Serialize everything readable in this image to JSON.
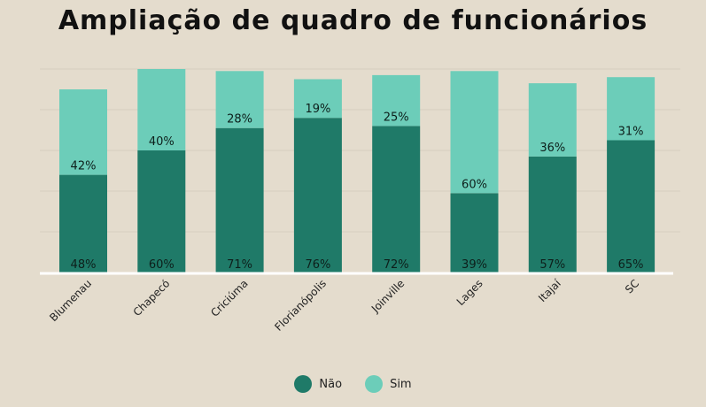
{
  "chart_data": {
    "type": "bar",
    "stacked": true,
    "title": "Ampliação de quadro de funcionários",
    "xlabel": "",
    "ylabel": "",
    "grid": true,
    "legend_position": "bottom",
    "categories": [
      "Blumenau",
      "Chapecó",
      "Criciúma",
      "Florianópolis",
      "Joinville",
      "Lages",
      "Itajaí",
      "SC"
    ],
    "series": [
      {
        "name": "Não",
        "color": "#1f7a68",
        "values": [
          48,
          60,
          71,
          76,
          72,
          39,
          57,
          65
        ],
        "labels": [
          "48%",
          "60%",
          "71%",
          "76%",
          "72%",
          "39%",
          "57%",
          "65%"
        ]
      },
      {
        "name": "Sim",
        "color": "#6ccdb9",
        "values": [
          42,
          40,
          28,
          19,
          25,
          60,
          36,
          31
        ],
        "labels": [
          "42%",
          "40%",
          "28%",
          "19%",
          "25%",
          "60%",
          "36%",
          "31%"
        ]
      }
    ]
  }
}
